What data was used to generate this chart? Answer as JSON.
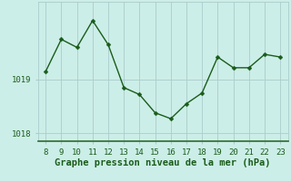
{
  "x": [
    8,
    9,
    10,
    11,
    12,
    13,
    14,
    15,
    16,
    17,
    18,
    19,
    20,
    21,
    22,
    23
  ],
  "y": [
    1019.15,
    1019.75,
    1019.6,
    1020.1,
    1019.65,
    1018.85,
    1018.72,
    1018.38,
    1018.27,
    1018.55,
    1018.75,
    1019.42,
    1019.22,
    1019.22,
    1019.47,
    1019.42
  ],
  "line_color": "#1a5c1a",
  "marker_color": "#1a5c1a",
  "bg_color": "#cceee8",
  "plot_bg_color": "#cceee8",
  "grid_color": "#aacccc",
  "tick_color": "#1a5c1a",
  "label_color": "#1a5c1a",
  "xlabel": "Graphe pression niveau de la mer (hPa)",
  "ytick_labels": [
    "1018",
    "1019"
  ],
  "yticks": [
    1018,
    1019
  ],
  "ylim": [
    1017.85,
    1020.45
  ],
  "xlim": [
    7.5,
    23.5
  ],
  "xticks": [
    8,
    9,
    10,
    11,
    12,
    13,
    14,
    15,
    16,
    17,
    18,
    19,
    20,
    21,
    22,
    23
  ],
  "tick_fontsize": 6.5,
  "xlabel_fontsize": 7.5,
  "marker_size": 2.5,
  "line_width": 1.0
}
